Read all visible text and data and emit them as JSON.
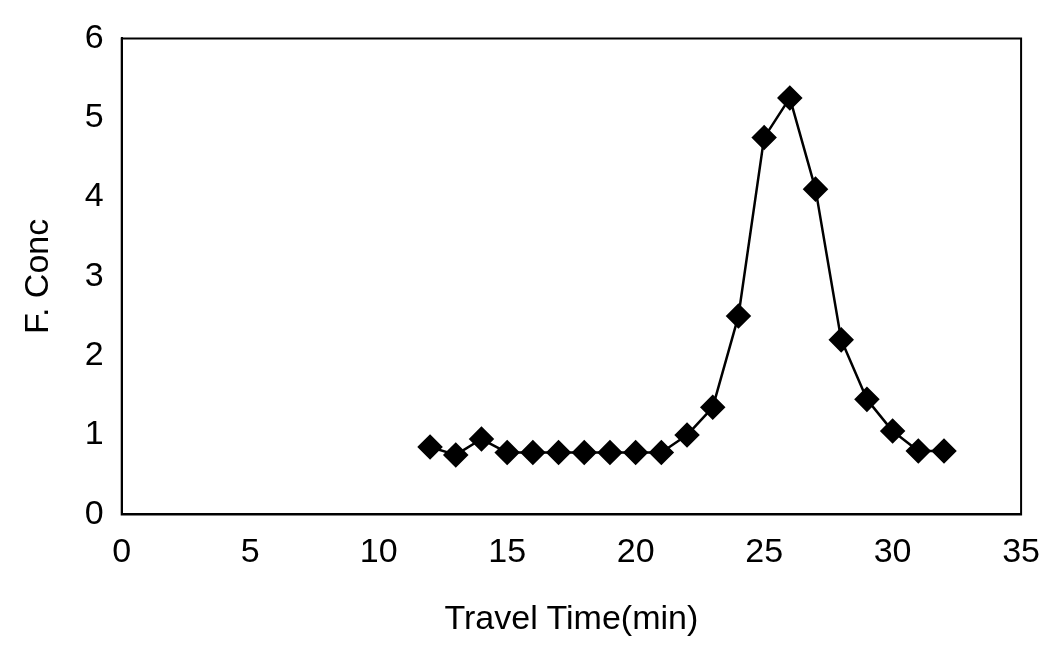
{
  "chart_data": {
    "type": "line",
    "xlabel": "Travel Time(min)",
    "ylabel": "F. Conc",
    "x": [
      12,
      13,
      14,
      15,
      16,
      17,
      18,
      19,
      20,
      21,
      22,
      23,
      24,
      25,
      26,
      27,
      28,
      29,
      30,
      31,
      32
    ],
    "series": [
      {
        "color": "#000000",
        "values": [
          0.85,
          0.75,
          0.95,
          0.78,
          0.78,
          0.78,
          0.78,
          0.78,
          0.78,
          0.78,
          1.0,
          1.35,
          2.5,
          4.75,
          5.25,
          4.1,
          2.2,
          1.45,
          1.05,
          0.8,
          0.8
        ]
      }
    ],
    "xlim": [
      0,
      35
    ],
    "xticks": [
      0,
      5,
      10,
      15,
      20,
      25,
      30,
      35
    ],
    "ylim": [
      0,
      6
    ],
    "yticks": [
      0,
      1,
      2,
      3,
      4,
      5,
      6
    ],
    "grid": false,
    "legend": false,
    "marker": "diamond",
    "line_style": "solid"
  }
}
